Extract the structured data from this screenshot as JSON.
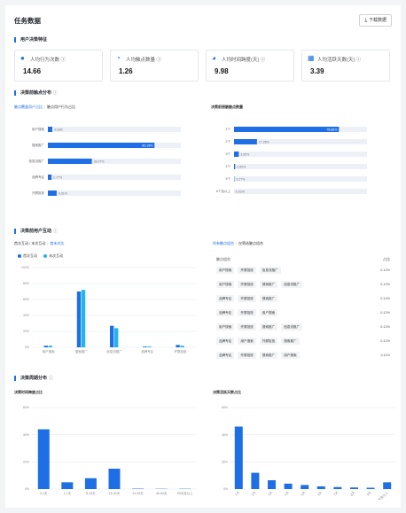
{
  "header": {
    "title": "任务数据",
    "download_label": "下载数据"
  },
  "section_user": {
    "title": "用户决策特征"
  },
  "cards": [
    {
      "label": "人均行为次数",
      "value": "14.66",
      "icon": "user-icon"
    },
    {
      "label": "人均触点数量",
      "value": "1.26",
      "icon": "pie-icon"
    },
    {
      "label": "人均时间跨度(天)",
      "value": "9.98",
      "icon": "globe-icon"
    },
    {
      "label": "人均活跃天数(天)",
      "value": "3.39",
      "icon": "calendar-icon"
    }
  ],
  "section_touch": {
    "title": "决策前触点分布"
  },
  "touch_tabs": {
    "active": "触点覆盖用户占比",
    "inactive": "触点用户行为占比"
  },
  "touch_count_title": "决策前接触触点数量",
  "section_interact": {
    "title": "决策前用户互动"
  },
  "interact_tabs": {
    "inactive": "首次互动 / 末次互动",
    "active": "首末对比"
  },
  "path_tabs": {
    "active": "所有触点组合",
    "inactive": "仅筛选触点组合"
  },
  "path_header": {
    "left": "触点组合",
    "right": "占比"
  },
  "paths": [
    {
      "chips": [
        "用户搜索",
        "开屏投放",
        "信息流推广"
      ],
      "value": "0.12%"
    },
    {
      "chips": [
        "用户搜索",
        "开屏投放",
        "搜索推广",
        "信息流推广"
      ],
      "value": "0.12%"
    },
    {
      "chips": [
        "品牌专区",
        "开屏投放",
        "搜索推广"
      ],
      "value": "0.12%"
    },
    {
      "chips": [
        "品牌专区",
        "开屏投放",
        "用户搜索"
      ],
      "value": "0.12%"
    },
    {
      "chips": [
        "用户搜索",
        "开屏投放",
        "搜索推广",
        "信息流推广"
      ],
      "value": "0.12%"
    },
    {
      "chips": [
        "品牌专区",
        "用户搜索",
        "开屏投放",
        "搜索推广"
      ],
      "value": "0.12%"
    },
    {
      "chips": [
        "品牌专区",
        "开屏投放",
        "搜索推广",
        "用户搜索"
      ],
      "value": "0.11%"
    }
  ],
  "section_cycle": {
    "title": "决策周期分布"
  },
  "cycle_left_title": "决策时间跨度占比",
  "cycle_right_title": "决策活跃天数占比",
  "chart_data": [
    {
      "type": "bar",
      "title": "触点覆盖用户占比",
      "categories": [
        "用户搜索",
        "搜索推广",
        "信息流推广",
        "品牌专区",
        "开屏投放"
      ],
      "values": [
        3.33,
        80.18,
        33.07,
        2.77,
        6.61
      ],
      "labels": [
        "3.33%",
        "80.18%",
        "33.07%",
        "2.77%",
        "6.61%"
      ],
      "xlim": [
        0,
        100
      ],
      "color": "#1e6fe6"
    },
    {
      "type": "bar",
      "title": "决策前接触触点数量",
      "categories": [
        "1个",
        "2个",
        "3个",
        "4个",
        "5个",
        "6个及以上"
      ],
      "values": [
        78.88,
        17.26,
        3.59,
        0.85,
        0.27,
        0.02
      ],
      "labels": [
        "78.88%",
        "17.26%",
        "3.59%",
        "0.85%",
        "0.27%",
        "0.02%"
      ],
      "xlim": [
        0,
        100
      ],
      "color": "#1e6fe6"
    },
    {
      "type": "bar",
      "title": "首末对比",
      "categories": [
        "用户搜索",
        "搜索推广",
        "信息流推广",
        "品牌专区",
        "开屏投放"
      ],
      "series": [
        {
          "name": "首次互动",
          "values": [
            2,
            70,
            27,
            1,
            3
          ],
          "color": "#1e6fe6"
        },
        {
          "name": "末次互动",
          "values": [
            2,
            72,
            24,
            1,
            2
          ],
          "color": "#1fb6f0"
        }
      ],
      "ylim": [
        0,
        100
      ],
      "yticks": [
        "0%",
        "20%",
        "40%",
        "60%",
        "80%",
        "100%"
      ],
      "legend": "top-left"
    },
    {
      "type": "bar",
      "title": "决策时间跨度占比",
      "categories": [
        "0-1天",
        "1-7天",
        "8-15天",
        "16-30天",
        "31-45天",
        "46-60天",
        "60天及以上"
      ],
      "values": [
        44,
        5,
        8,
        15,
        0.3,
        0.2,
        0.2
      ],
      "ylim": [
        0,
        60
      ],
      "yticks": [
        "0%",
        "20%",
        "40%",
        "60%"
      ],
      "color": "#1e6fe6"
    },
    {
      "type": "bar",
      "title": "决策活跃天数占比",
      "categories": [
        "1天",
        "2天",
        "3天",
        "4天",
        "5天",
        "6天",
        "7天",
        "8天",
        "9天",
        "10天及以上"
      ],
      "values": [
        46,
        12,
        6.5,
        4,
        3,
        2,
        1.5,
        1.2,
        1,
        5
      ],
      "ylim": [
        0,
        60
      ],
      "yticks": [
        "0%",
        "20%",
        "40%",
        "60%"
      ],
      "color": "#1e6fe6"
    }
  ]
}
